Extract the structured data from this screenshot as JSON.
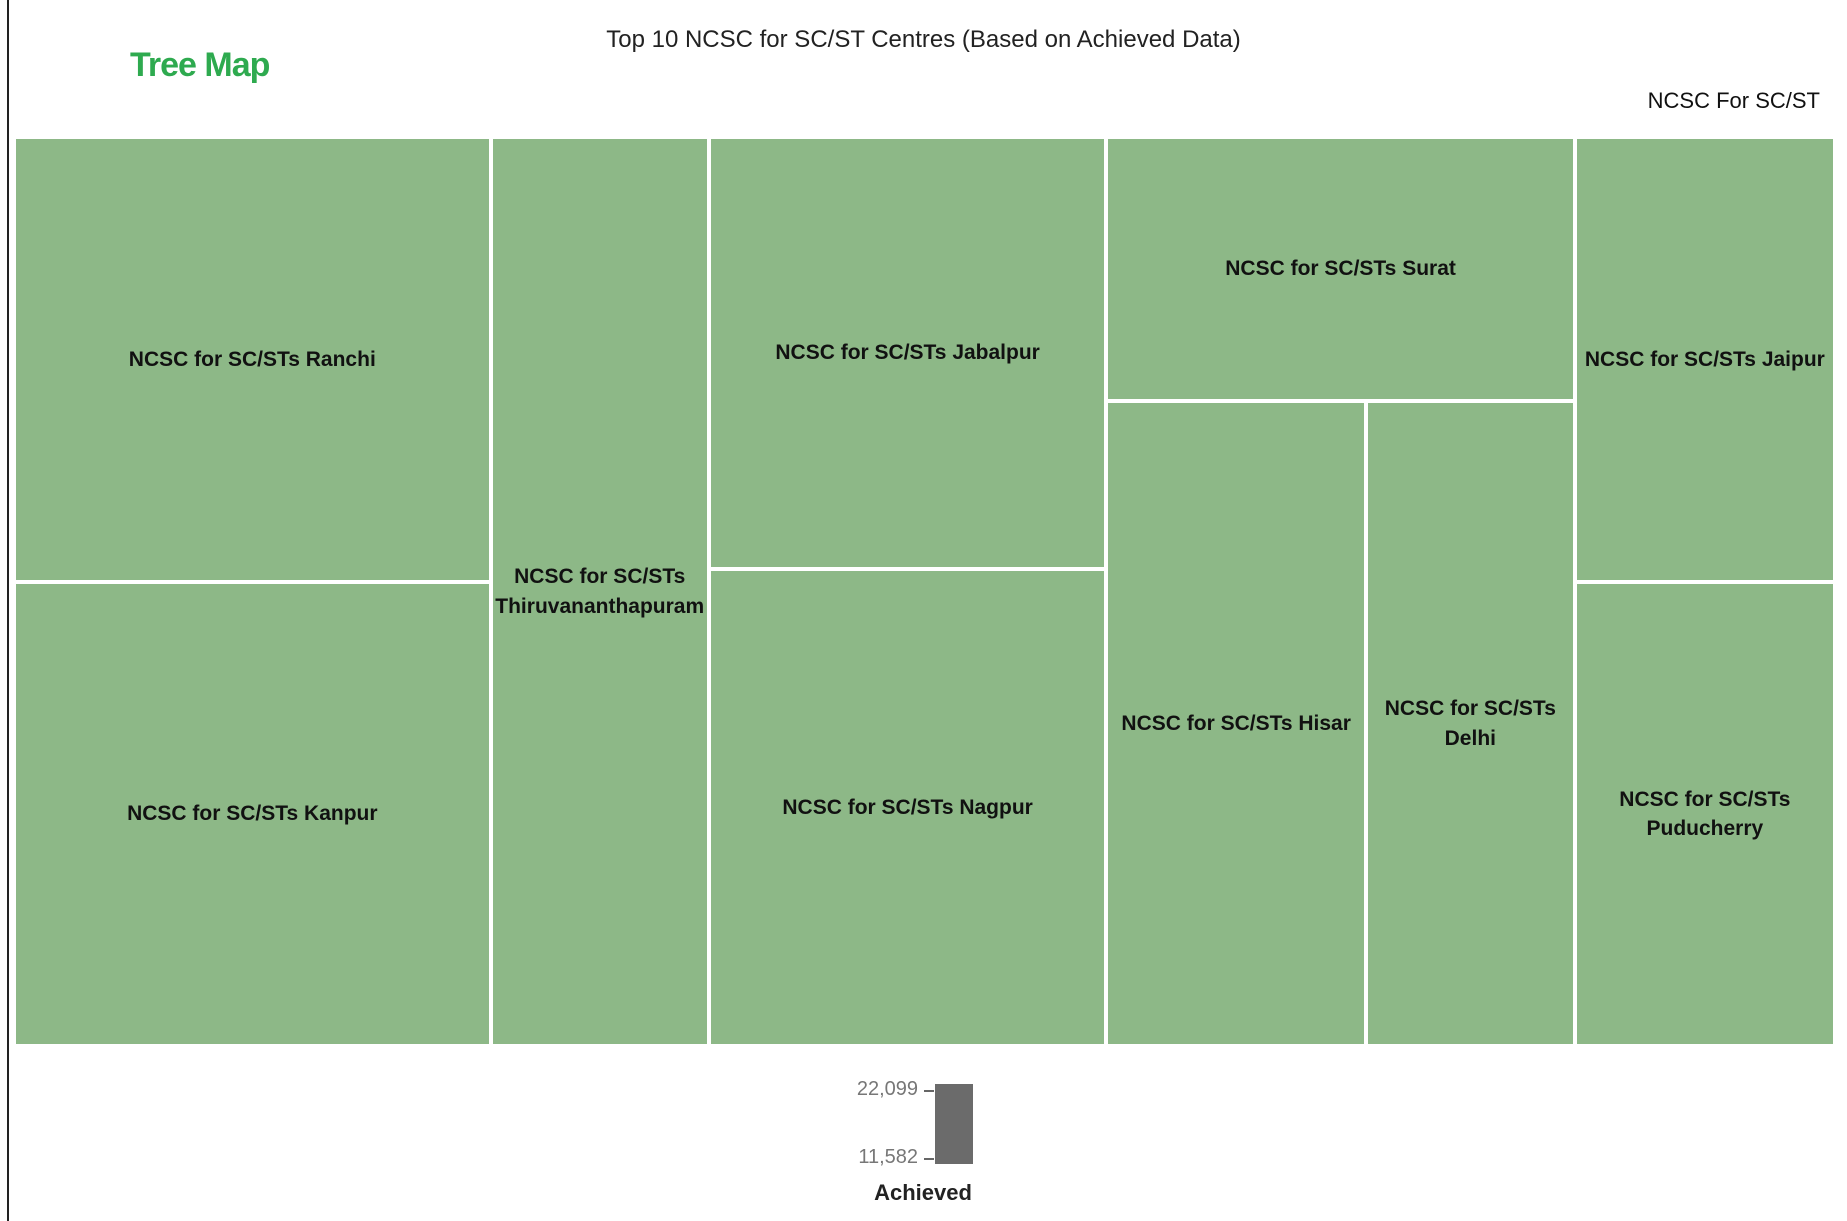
{
  "page_title": "Tree Map",
  "chart_data": {
    "type": "treemap",
    "title": "Top 10 NCSC for SC/ST Centres (Based on Achieved Data)",
    "series_name": "NCSC For SC/ST",
    "labels": [
      "NCSC for SC/STs Ranchi",
      "NCSC for SC/STs Kanpur",
      "NCSC for SC/STs Thiruvananthapuram",
      "NCSC for SC/STs Jabalpur",
      "NCSC for SC/STs Nagpur",
      "NCSC for SC/STs Surat",
      "NCSC for SC/STs Hisar",
      "NCSC for SC/STs Delhi",
      "NCSC for SC/STs Jaipur",
      "NCSC for SC/STs Puducherry"
    ],
    "values": [
      21204,
      22099,
      19829,
      17174,
      18947,
      12370,
      16726,
      13457,
      11582,
      12064
    ],
    "color": "#8db887",
    "color_axis": {
      "title": "Achieved",
      "lim": [
        11582,
        22099
      ],
      "color": "#6b6b6b",
      "ticks": [
        {
          "value": 22099,
          "label": "22,099"
        },
        {
          "value": 11582,
          "label": "11,582"
        }
      ]
    }
  }
}
